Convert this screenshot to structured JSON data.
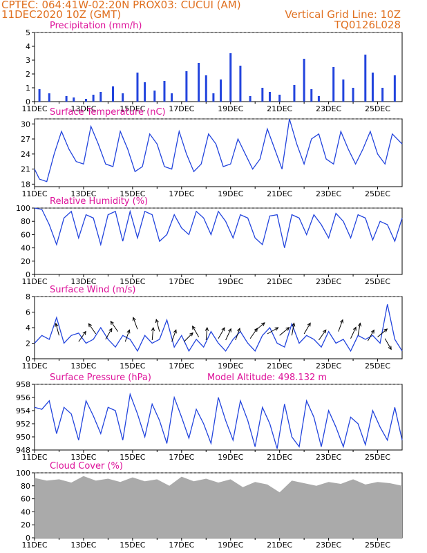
{
  "header": {
    "line1": "CPTEC:   064:41W-02:20N   PROX03: CUCUI (AM)",
    "line2": "11DEC2020 10Z (GMT)",
    "grid_line": "Vertical Grid Line: 10Z",
    "code": "TQ0126L028"
  },
  "colors": {
    "series": "#2244dd",
    "title": "#dd1199",
    "header": "#e07020",
    "cloud": "#aaaaaa",
    "arrow": "#000000"
  },
  "x_ticks": [
    "11DEC",
    "13DEC",
    "15DEC",
    "17DEC",
    "19DEC",
    "21DEC",
    "23DEC",
    "25DEC"
  ],
  "chart_data": [
    {
      "type": "bar",
      "title": "Precipitation (mm/h)",
      "ylim": [
        0,
        5
      ],
      "yticks": [
        "0",
        "1",
        "2",
        "3",
        "4",
        "5"
      ],
      "x": [
        0.2,
        0.6,
        1.3,
        1.6,
        2.1,
        2.4,
        2.7,
        3.2,
        3.6,
        4.2,
        4.5,
        4.9,
        5.3,
        5.6,
        6.2,
        6.7,
        7.0,
        7.3,
        7.6,
        8.0,
        8.4,
        8.8,
        9.3,
        9.6,
        10.0,
        10.6,
        11.0,
        11.3,
        11.6,
        12.2,
        12.6,
        13.0,
        13.5,
        13.8,
        14.2,
        14.7
      ],
      "values": [
        0.9,
        0.6,
        0.4,
        0.3,
        0.2,
        0.5,
        0.7,
        1.1,
        0.6,
        2.1,
        1.4,
        0.8,
        1.5,
        0.6,
        2.2,
        2.8,
        1.9,
        0.6,
        1.6,
        3.5,
        2.6,
        0.4,
        1.0,
        0.7,
        0.5,
        1.2,
        3.1,
        0.9,
        0.4,
        2.5,
        1.6,
        1.0,
        3.4,
        2.1,
        1.0,
        1.9
      ]
    },
    {
      "type": "line",
      "title": "Surface Temperature (nC)",
      "ylim": [
        17.5,
        31
      ],
      "yticks": [
        "18",
        "21",
        "24",
        "27",
        "30"
      ],
      "x": [
        0,
        0.2,
        0.5,
        0.8,
        1.1,
        1.4,
        1.7,
        2.0,
        2.3,
        2.6,
        2.9,
        3.2,
        3.5,
        3.8,
        4.1,
        4.4,
        4.7,
        5.0,
        5.3,
        5.6,
        5.9,
        6.2,
        6.5,
        6.8,
        7.1,
        7.4,
        7.7,
        8.0,
        8.3,
        8.6,
        8.9,
        9.2,
        9.5,
        9.8,
        10.1,
        10.4,
        10.7,
        11.0,
        11.3,
        11.6,
        11.9,
        12.2,
        12.5,
        12.8,
        13.1,
        13.4,
        13.7,
        14.0,
        14.3,
        14.6,
        15.0
      ],
      "values": [
        21,
        19,
        18.5,
        24,
        28.5,
        25,
        22.5,
        22,
        29.5,
        26,
        22,
        21.5,
        28.5,
        25,
        20.5,
        21.5,
        28,
        26,
        21.5,
        21,
        28.5,
        24,
        20.5,
        22,
        28,
        26,
        21.5,
        22,
        27,
        24,
        21,
        23,
        29,
        25,
        21,
        31,
        26,
        22,
        27,
        28,
        23,
        22,
        28.5,
        25,
        22,
        25,
        28.5,
        24,
        22,
        28,
        26
      ]
    },
    {
      "type": "line",
      "title": "Relative Humidity (%)",
      "ylim": [
        0,
        100
      ],
      "yticks": [
        "0",
        "20",
        "40",
        "60",
        "80",
        "100"
      ],
      "x": [
        0,
        0.3,
        0.6,
        0.9,
        1.2,
        1.5,
        1.8,
        2.1,
        2.4,
        2.7,
        3.0,
        3.3,
        3.6,
        3.9,
        4.2,
        4.5,
        4.8,
        5.1,
        5.4,
        5.7,
        6.0,
        6.3,
        6.6,
        6.9,
        7.2,
        7.5,
        7.8,
        8.1,
        8.4,
        8.7,
        9.0,
        9.3,
        9.6,
        9.9,
        10.2,
        10.5,
        10.8,
        11.1,
        11.4,
        11.7,
        12.0,
        12.3,
        12.6,
        12.9,
        13.2,
        13.5,
        13.8,
        14.1,
        14.4,
        14.7,
        15.0
      ],
      "values": [
        100,
        98,
        75,
        45,
        85,
        95,
        55,
        90,
        85,
        45,
        90,
        95,
        50,
        95,
        55,
        95,
        90,
        50,
        60,
        90,
        70,
        60,
        95,
        85,
        60,
        95,
        80,
        55,
        90,
        85,
        55,
        45,
        88,
        90,
        40,
        90,
        85,
        60,
        90,
        75,
        55,
        92,
        80,
        55,
        90,
        85,
        52,
        80,
        75,
        50,
        85
      ]
    },
    {
      "type": "line",
      "title": "Surface Wind (m/s)",
      "ylim": [
        0,
        8
      ],
      "yticks": [
        "0",
        "2",
        "4",
        "6",
        "8"
      ],
      "x": [
        0,
        0.3,
        0.6,
        0.9,
        1.2,
        1.5,
        1.8,
        2.1,
        2.4,
        2.7,
        3.0,
        3.3,
        3.6,
        3.9,
        4.2,
        4.5,
        4.8,
        5.1,
        5.4,
        5.7,
        6.0,
        6.3,
        6.6,
        6.9,
        7.2,
        7.5,
        7.8,
        8.1,
        8.4,
        8.7,
        9.0,
        9.3,
        9.6,
        9.9,
        10.2,
        10.5,
        10.8,
        11.1,
        11.4,
        11.7,
        12.0,
        12.3,
        12.6,
        12.9,
        13.2,
        13.5,
        13.8,
        14.1,
        14.4,
        14.7,
        15.0
      ],
      "values": [
        2,
        3,
        2.5,
        5.3,
        2,
        3,
        3.3,
        2,
        2.5,
        4,
        2.5,
        1.5,
        3,
        2.5,
        1,
        3,
        2,
        2.5,
        5,
        1.5,
        3,
        1,
        2.5,
        1.5,
        3.5,
        2,
        1,
        2.5,
        3.5,
        2,
        1,
        3,
        4,
        2,
        1.5,
        4.5,
        2,
        3,
        2.5,
        1.5,
        3.5,
        2,
        2.5,
        1,
        3,
        2.5,
        3,
        2,
        7,
        2.5,
        1
      ],
      "barbs": [
        {
          "x": 1.0,
          "v": 3.0,
          "dir": 75
        },
        {
          "x": 1.8,
          "v": 2.2,
          "dir": 125
        },
        {
          "x": 2.5,
          "v": 3.2,
          "dir": 55
        },
        {
          "x": 2.9,
          "v": 2.5,
          "dir": 120
        },
        {
          "x": 3.4,
          "v": 3.5,
          "dir": 55
        },
        {
          "x": 3.7,
          "v": 2.2,
          "dir": 110
        },
        {
          "x": 4.2,
          "v": 3.8,
          "dir": 70
        },
        {
          "x": 4.8,
          "v": 2.4,
          "dir": 95
        },
        {
          "x": 5.1,
          "v": 3.5,
          "dir": 75
        },
        {
          "x": 5.6,
          "v": 2.2,
          "dir": 110
        },
        {
          "x": 6.1,
          "v": 2.2,
          "dir": 135
        },
        {
          "x": 6.7,
          "v": 2.8,
          "dir": 60
        },
        {
          "x": 7.0,
          "v": 2.4,
          "dir": 95
        },
        {
          "x": 7.5,
          "v": 2.6,
          "dir": 120
        },
        {
          "x": 7.8,
          "v": 2.4,
          "dir": 115
        },
        {
          "x": 8.2,
          "v": 2.4,
          "dir": 110
        },
        {
          "x": 8.8,
          "v": 2.6,
          "dir": 125
        },
        {
          "x": 9.0,
          "v": 3.6,
          "dir": 140
        },
        {
          "x": 9.5,
          "v": 3.2,
          "dir": 150
        },
        {
          "x": 10.0,
          "v": 3.0,
          "dir": 140
        },
        {
          "x": 10.5,
          "v": 3.0,
          "dir": 100
        },
        {
          "x": 11.0,
          "v": 3.2,
          "dir": 120
        },
        {
          "x": 11.6,
          "v": 2.4,
          "dir": 125
        },
        {
          "x": 12.4,
          "v": 3.5,
          "dir": 110
        },
        {
          "x": 12.9,
          "v": 2.6,
          "dir": 115
        },
        {
          "x": 13.2,
          "v": 3.0,
          "dir": 100
        },
        {
          "x": 13.6,
          "v": 2.3,
          "dir": 120
        },
        {
          "x": 14.0,
          "v": 2.8,
          "dir": 140
        },
        {
          "x": 14.3,
          "v": 2.6,
          "dir": 240
        }
      ]
    },
    {
      "type": "line",
      "title": "Surface Pressure (hPa)",
      "extra_label": "Model Altitude: 498.132 m",
      "ylim": [
        948,
        958
      ],
      "yticks": [
        "948",
        "950",
        "952",
        "954",
        "956",
        "958"
      ],
      "x": [
        0,
        0.3,
        0.6,
        0.9,
        1.2,
        1.5,
        1.8,
        2.1,
        2.4,
        2.7,
        3.0,
        3.3,
        3.6,
        3.9,
        4.2,
        4.5,
        4.8,
        5.1,
        5.4,
        5.7,
        6.0,
        6.3,
        6.6,
        6.9,
        7.2,
        7.5,
        7.8,
        8.1,
        8.4,
        8.7,
        9.0,
        9.3,
        9.6,
        9.9,
        10.2,
        10.5,
        10.8,
        11.1,
        11.4,
        11.7,
        12.0,
        12.3,
        12.6,
        12.9,
        13.2,
        13.5,
        13.8,
        14.1,
        14.4,
        14.7,
        15.0
      ],
      "values": [
        954.5,
        954.2,
        955.5,
        950.5,
        954.5,
        953.5,
        949.5,
        955.5,
        953.2,
        950.5,
        954.5,
        954.0,
        949.5,
        956.5,
        953.5,
        950.0,
        955.0,
        952.5,
        949.0,
        956.0,
        953.0,
        949.8,
        954.2,
        952.0,
        949.0,
        956.0,
        952.5,
        949.5,
        955.5,
        952.5,
        948.5,
        954.5,
        952.0,
        948.2,
        955.0,
        950.0,
        948.5,
        955.5,
        953.0,
        948.5,
        954.0,
        951.5,
        948.5,
        953.0,
        952.0,
        948.8,
        954.0,
        951.5,
        949.5,
        954.5,
        949.5
      ]
    },
    {
      "type": "area",
      "title": "Cloud Cover (%)",
      "ylim": [
        0,
        100
      ],
      "yticks": [
        "0",
        "20",
        "40",
        "60",
        "80",
        "100"
      ],
      "x": [
        0,
        0.5,
        1.0,
        1.5,
        2.0,
        2.5,
        3.0,
        3.5,
        4.0,
        4.5,
        5.0,
        5.5,
        6.0,
        6.5,
        7.0,
        7.5,
        8.0,
        8.5,
        9.0,
        9.5,
        10.0,
        10.5,
        11.0,
        11.5,
        12.0,
        12.5,
        13.0,
        13.5,
        14.0,
        14.5,
        15.0
      ],
      "values": [
        92,
        88,
        90,
        85,
        95,
        88,
        91,
        86,
        93,
        87,
        90,
        80,
        94,
        87,
        91,
        85,
        90,
        78,
        86,
        82,
        70,
        88,
        84,
        80,
        86,
        83,
        90,
        82,
        86,
        84,
        80
      ]
    }
  ]
}
